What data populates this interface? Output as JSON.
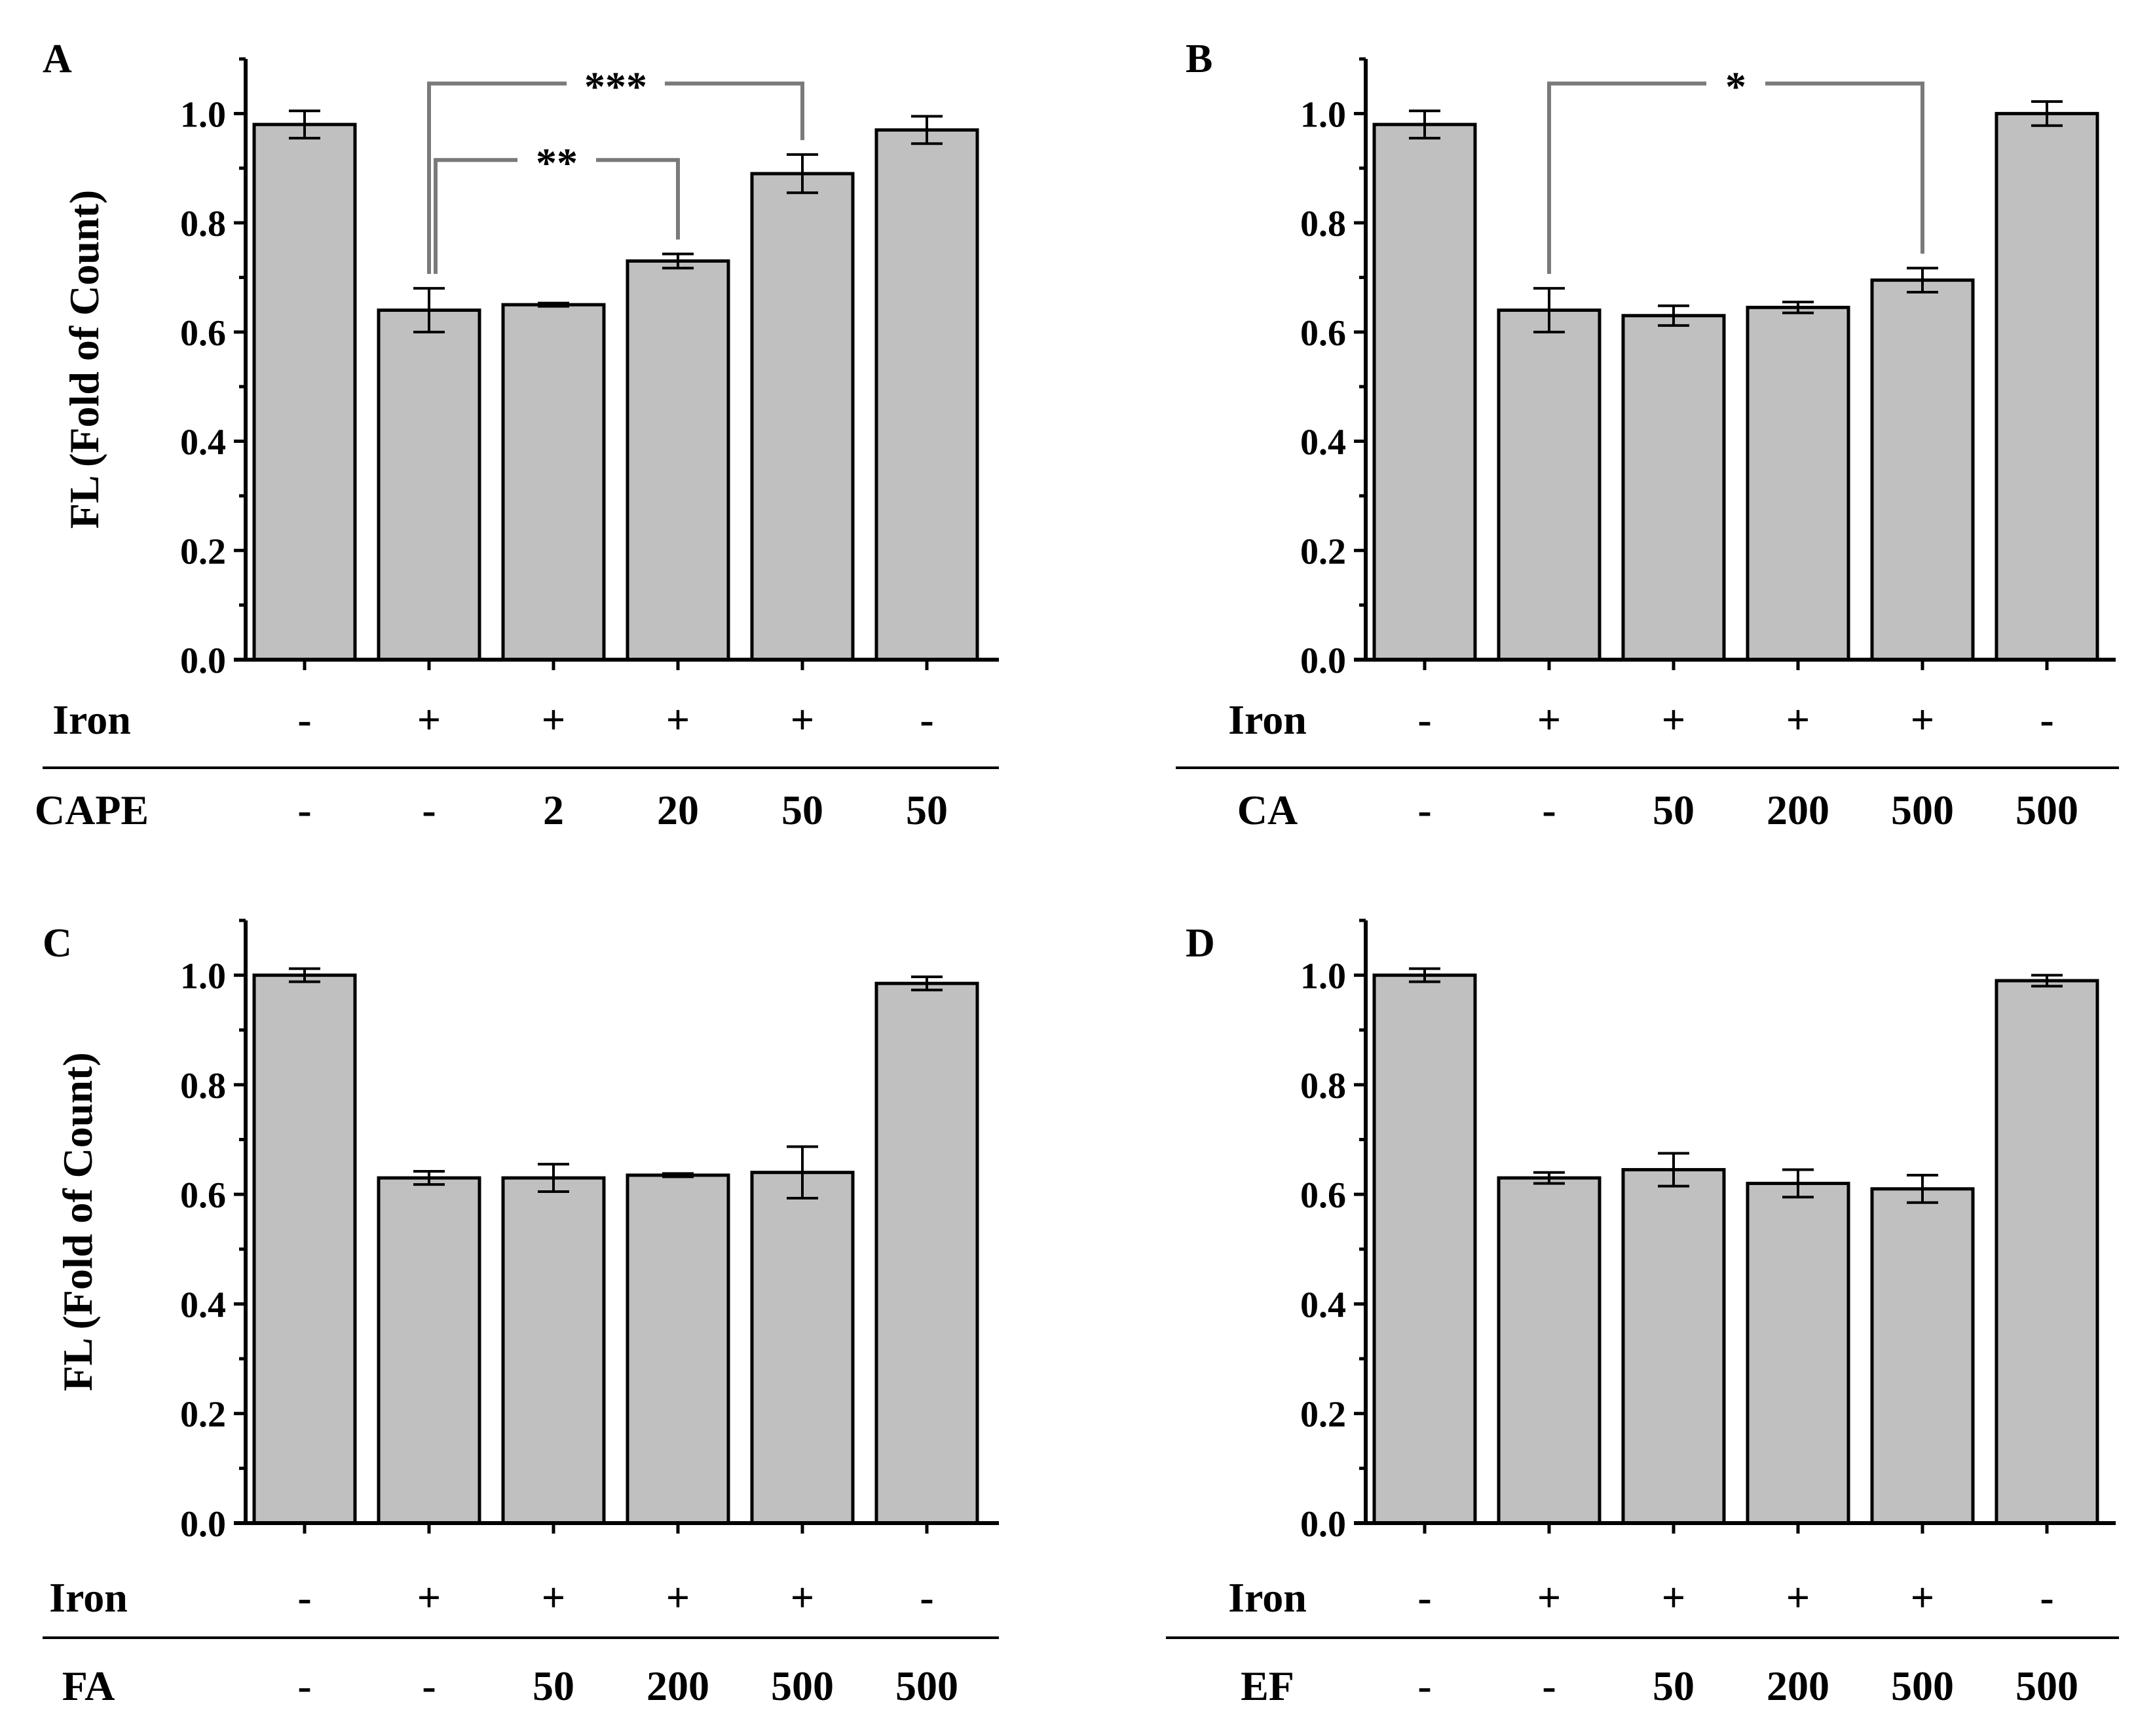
{
  "chart_data": [
    {
      "panel": "A",
      "type": "bar",
      "ylabel": "FL (Fold of Count)",
      "ylim": [
        0,
        1.1
      ],
      "yticks": [
        "0.0",
        "0.2",
        "0.4",
        "0.6",
        "0.8",
        "1.0"
      ],
      "row1_label": "Iron",
      "row1": [
        "-",
        "+",
        "+",
        "+",
        "+",
        "-"
      ],
      "row2_label": "CAPE",
      "row2": [
        "-",
        "-",
        "2",
        "20",
        "50",
        "50"
      ],
      "values": [
        0.98,
        0.64,
        0.65,
        0.73,
        0.89,
        0.97
      ],
      "errors": [
        0.025,
        0.04,
        0.003,
        0.013,
        0.035,
        0.025
      ],
      "brackets": [
        {
          "from": 1,
          "to": 4,
          "label": "***",
          "level": 1.055
        },
        {
          "from": 1,
          "to": 3,
          "label": "**",
          "level": 0.915
        }
      ]
    },
    {
      "panel": "B",
      "type": "bar",
      "ylabel": "",
      "ylim": [
        0,
        1.1
      ],
      "yticks": [
        "0.0",
        "0.2",
        "0.4",
        "0.6",
        "0.8",
        "1.0"
      ],
      "row1_label": "Iron",
      "row1": [
        "-",
        "+",
        "+",
        "+",
        "+",
        "-"
      ],
      "row2_label": "CA",
      "row2": [
        "-",
        "-",
        "50",
        "200",
        "500",
        "500"
      ],
      "values": [
        0.98,
        0.64,
        0.63,
        0.645,
        0.695,
        1.0
      ],
      "errors": [
        0.025,
        0.04,
        0.018,
        0.01,
        0.022,
        0.022
      ],
      "brackets": [
        {
          "from": 1,
          "to": 4,
          "label": "*",
          "level": 1.055
        }
      ]
    },
    {
      "panel": "C",
      "type": "bar",
      "ylabel": "FL (Fold of Count)",
      "ylim": [
        0,
        1.1
      ],
      "yticks": [
        "0.0",
        "0.2",
        "0.4",
        "0.6",
        "0.8",
        "1.0"
      ],
      "row1_label": "Iron",
      "row1": [
        "-",
        "+",
        "+",
        "+",
        "+",
        "-"
      ],
      "row2_label": "FA",
      "row2": [
        "-",
        "-",
        "50",
        "200",
        "500",
        "500"
      ],
      "values": [
        1.0,
        0.63,
        0.63,
        0.635,
        0.64,
        0.985
      ],
      "errors": [
        0.012,
        0.012,
        0.025,
        0.003,
        0.047,
        0.012
      ],
      "brackets": []
    },
    {
      "panel": "D",
      "type": "bar",
      "ylabel": "",
      "ylim": [
        0,
        1.1
      ],
      "yticks": [
        "0.0",
        "0.2",
        "0.4",
        "0.6",
        "0.8",
        "1.0"
      ],
      "row1_label": "Iron",
      "row1": [
        "-",
        "+",
        "+",
        "+",
        "+",
        "-"
      ],
      "row2_label": "EF",
      "row2": [
        "-",
        "-",
        "50",
        "200",
        "500",
        "500"
      ],
      "values": [
        1.0,
        0.63,
        0.645,
        0.62,
        0.61,
        0.99
      ],
      "errors": [
        0.012,
        0.01,
        0.03,
        0.025,
        0.025,
        0.01
      ],
      "brackets": []
    }
  ]
}
